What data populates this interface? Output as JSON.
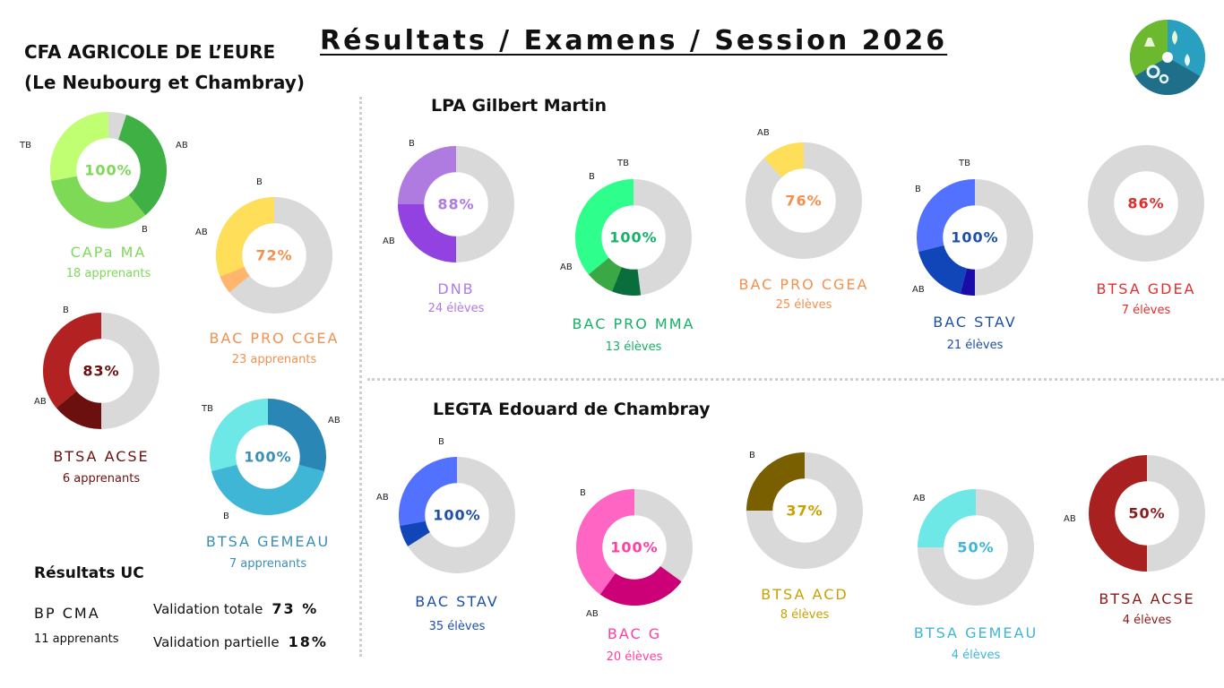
{
  "header": {
    "title": "Résultats / Examens / Session 2026",
    "org_line1": "CFA AGRICOLE DE L’EURE",
    "org_line2": "(Le Neubourg et Chambray)"
  },
  "sections": {
    "lpa": "LPA Gilbert Martin",
    "legta": "LEGTA Edouard de Chambray"
  },
  "colors": {
    "track": "#d9d9d9",
    "divider": "#cfcfcf"
  },
  "logo": {
    "icon": "agriculture-science-logo-icon",
    "colors": [
      "#6cb82e",
      "#2f8fb0",
      "#1f6f8b"
    ]
  },
  "chart_data": [
    {
      "id": "capa-ma",
      "type": "pie",
      "title": "CAPa MA",
      "subtitle": "18 apprenants",
      "center_label": "100%",
      "color": "#7ed957",
      "track": "#d9d9d9",
      "segments": [
        {
          "label": "AB",
          "value": 28,
          "color": "#c1ff72"
        },
        {
          "label": "B",
          "value": 33,
          "color": "#7ed957"
        },
        {
          "label": "TB",
          "value": 34,
          "color": "#3fb043"
        }
      ]
    },
    {
      "id": "bac-pro-cgea-cfa",
      "type": "pie",
      "title": "BAC PRO CGEA",
      "subtitle": "23 apprenants",
      "center_label": "72%",
      "color": "#f4904f",
      "track": "#d9d9d9",
      "segments": [
        {
          "label": "AB",
          "value": 31,
          "color": "#ffde59"
        },
        {
          "label": "B",
          "value": 5,
          "color": "#ffb56b"
        }
      ]
    },
    {
      "id": "btsa-acse-cfa",
      "type": "pie",
      "title": "BTSA ACSE",
      "subtitle": "6 apprenants",
      "center_label": "83%",
      "color": "#6b1010",
      "track": "#d9d9d9",
      "segments": [
        {
          "label": "AB",
          "value": 36,
          "color": "#b22222"
        },
        {
          "label": "B",
          "value": 14,
          "color": "#6b0f0f"
        }
      ]
    },
    {
      "id": "btsa-gemeau-cfa",
      "type": "pie",
      "title": "BTSA GEMEAU",
      "subtitle": "7 apprenants",
      "center_label": "100%",
      "color": "#3a8fb7",
      "track": "#d9d9d9",
      "segments": [
        {
          "label": "AB",
          "value": 29,
          "color": "#6ee7e7"
        },
        {
          "label": "B",
          "value": 42,
          "color": "#3fb6d6"
        },
        {
          "label": "TB",
          "value": 29,
          "color": "#2a86b5"
        }
      ]
    },
    {
      "id": "dnb",
      "type": "pie",
      "title": "DNB",
      "subtitle": "24 élèves",
      "center_label": "88%",
      "color": "#b07be0",
      "track": "#d9d9d9",
      "segments": [
        {
          "label": "AB",
          "value": 25,
          "color": "#b07be0"
        },
        {
          "label": "B",
          "value": 25,
          "color": "#9142e0"
        }
      ]
    },
    {
      "id": "bac-pro-mma",
      "type": "pie",
      "title": "BAC PRO MMA",
      "subtitle": "13 élèves",
      "center_label": "100%",
      "color": "#17b169",
      "track": "#d9d9d9",
      "segments": [
        {
          "label": "AB",
          "value": 36,
          "color": "#2eff8c"
        },
        {
          "label": "B",
          "value": 8,
          "color": "#3aa845"
        },
        {
          "label": "TB",
          "value": 8,
          "color": "#0a6e3c"
        }
      ]
    },
    {
      "id": "bac-pro-cgea-lpa",
      "type": "pie",
      "title": "BAC PRO CGEA",
      "subtitle": "25 élèves",
      "center_label": "76%",
      "color": "#f4904f",
      "track": "#d9d9d9",
      "segments": [
        {
          "label": "AB",
          "value": 12,
          "color": "#ffde59"
        }
      ]
    },
    {
      "id": "bac-stav-lpa",
      "type": "pie",
      "title": "BAC STAV",
      "subtitle": "21 élèves",
      "center_label": "100%",
      "color": "#1e4fa8",
      "track": "#d9d9d9",
      "segments": [
        {
          "label": "AB",
          "value": 29,
          "color": "#5271ff"
        },
        {
          "label": "B",
          "value": 17,
          "color": "#1046b8"
        },
        {
          "label": "TB",
          "value": 4,
          "color": "#1a0ca8"
        }
      ]
    },
    {
      "id": "btsa-gdea",
      "type": "pie",
      "title": "BTSA GDEA",
      "subtitle": "7 élèves",
      "center_label": "86%",
      "color": "#e02f2f",
      "track": "#d9d9d9",
      "segments": []
    },
    {
      "id": "bac-stav-legta",
      "type": "pie",
      "title": "BAC STAV",
      "subtitle": "35 élèves",
      "center_label": "100%",
      "color": "#1e4fa8",
      "track": "#d9d9d9",
      "segments": [
        {
          "label": "AB",
          "value": 28,
          "color": "#5271ff"
        },
        {
          "label": "B",
          "value": 6,
          "color": "#1046b8"
        }
      ]
    },
    {
      "id": "bac-g",
      "type": "pie",
      "title": "BAC G",
      "subtitle": "20 élèves",
      "center_label": "100%",
      "color": "#ff3fa4",
      "track": "#d9d9d9",
      "segments": [
        {
          "label": "AB",
          "value": 40,
          "color": "#ff66c4"
        },
        {
          "label": "B",
          "value": 25,
          "color": "#cc0077"
        }
      ]
    },
    {
      "id": "btsa-acd",
      "type": "pie",
      "title": "BTSA ACD",
      "subtitle": "8 élèves",
      "center_label": "37%",
      "color": "#c9a100",
      "track": "#d9d9d9",
      "segments": [
        {
          "label": "B",
          "value": 25,
          "color": "#7a5f00"
        }
      ]
    },
    {
      "id": "btsa-gemeau-legta",
      "type": "pie",
      "title": "BTSA GEMEAU",
      "subtitle": "4 élèves",
      "center_label": "50%",
      "color": "#3fb6d6",
      "track": "#d9d9d9",
      "segments": [
        {
          "label": "AB",
          "value": 25,
          "color": "#6ee7e7"
        }
      ]
    },
    {
      "id": "btsa-acse-legta",
      "type": "pie",
      "title": "BTSA ACSE",
      "subtitle": "4 élèves",
      "center_label": "50%",
      "color": "#8b1a1a",
      "track": "#d9d9d9",
      "segments": [
        {
          "label": "AB",
          "value": 50,
          "color": "#a82020"
        }
      ]
    }
  ],
  "uc": {
    "title": "Résultats UC",
    "name": "BP CMA",
    "count": "11 apprenants",
    "total_label": "Validation totale",
    "total_value": "73 %",
    "partial_label": "Validation partielle",
    "partial_value": "18%"
  }
}
